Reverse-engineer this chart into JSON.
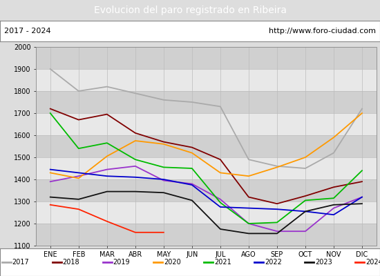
{
  "title": "Evolucion del paro registrado en Ribeira",
  "title_bg": "#4a86c8",
  "subtitle_left": "2017 - 2024",
  "subtitle_right": "http://www.foro-ciudad.com",
  "months": [
    "ENE",
    "FEB",
    "MAR",
    "ABR",
    "MAY",
    "JUN",
    "JUL",
    "AGO",
    "SEP",
    "OCT",
    "NOV",
    "DIC"
  ],
  "ylim": [
    1100,
    2000
  ],
  "yticks": [
    1100,
    1200,
    1300,
    1400,
    1500,
    1600,
    1700,
    1800,
    1900,
    2000
  ],
  "series": {
    "2017": {
      "color": "#aaaaaa",
      "data": [
        1900,
        1800,
        1820,
        1790,
        1760,
        1750,
        1730,
        1490,
        1460,
        1450,
        1520,
        1720
      ]
    },
    "2018": {
      "color": "#800000",
      "data": [
        1720,
        1670,
        1695,
        1610,
        1570,
        1545,
        1490,
        1320,
        1290,
        1325,
        1365,
        1390
      ]
    },
    "2019": {
      "color": "#9933cc",
      "data": [
        1390,
        1415,
        1445,
        1460,
        1395,
        1380,
        1310,
        1200,
        1165,
        1165,
        1270,
        1320
      ]
    },
    "2020": {
      "color": "#ff9900",
      "data": [
        1430,
        1405,
        1505,
        1575,
        1560,
        1520,
        1430,
        1415,
        1455,
        1500,
        1590,
        1700
      ]
    },
    "2021": {
      "color": "#00bb00",
      "data": [
        1700,
        1540,
        1565,
        1490,
        1455,
        1450,
        1295,
        1200,
        1205,
        1305,
        1315,
        1440
      ]
    },
    "2022": {
      "color": "#0000cc",
      "data": [
        1445,
        1430,
        1415,
        1410,
        1400,
        1375,
        1275,
        1270,
        1265,
        1255,
        1240,
        1320
      ]
    },
    "2023": {
      "color": "#111111",
      "data": [
        1320,
        1310,
        1345,
        1345,
        1340,
        1305,
        1175,
        1155,
        1155,
        1255,
        1285,
        1290
      ]
    },
    "2024": {
      "color": "#ff2200",
      "data": [
        1285,
        1265,
        1210,
        1160,
        1160,
        null,
        null,
        null,
        null,
        null,
        null,
        null
      ]
    }
  },
  "bg_color": "#dddddd",
  "plot_bg": "#e8e8e8",
  "stripe_dark": "#d0d0d0",
  "stripe_light": "#e8e8e8",
  "grid_color": "#bbbbbb"
}
